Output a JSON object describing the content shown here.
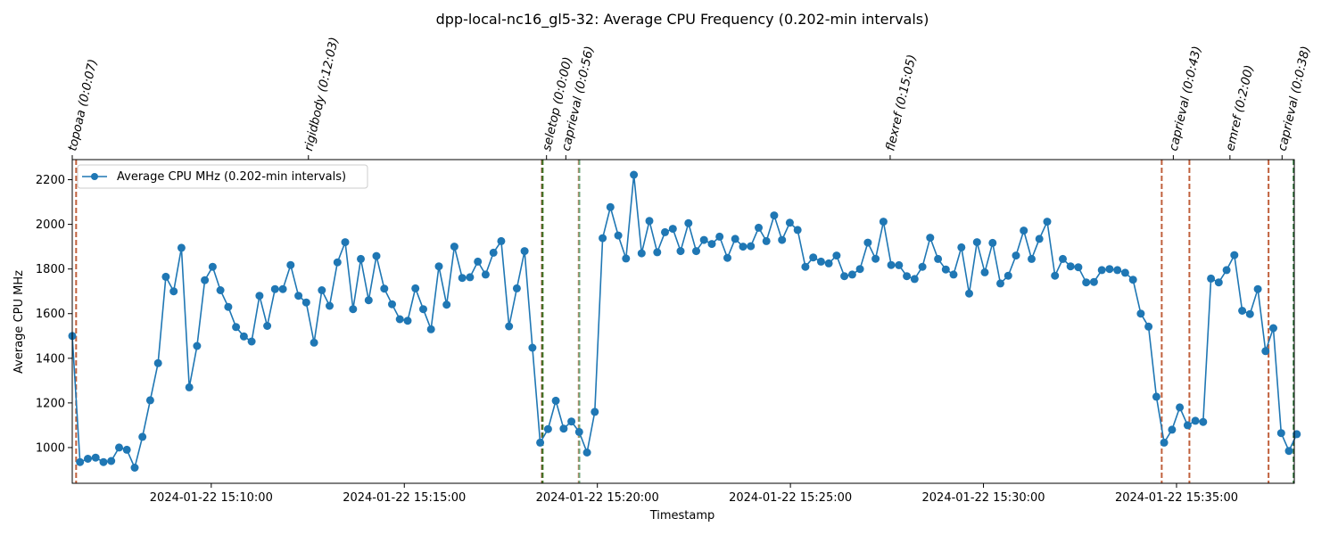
{
  "chart_data": {
    "type": "line",
    "title": "dpp-local-nc16_gl5-32: Average CPU Frequency (0.202-min intervals)",
    "xlabel": "Timestamp",
    "ylabel": "Average CPU MHz",
    "ylim": [
      840,
      2290
    ],
    "xlim": [
      "2024-01-22 15:06:24",
      "2024-01-22 15:38:03"
    ],
    "yticks": [
      1000,
      1200,
      1400,
      1600,
      1800,
      2000,
      2200
    ],
    "xticks": [
      {
        "t": "2024-01-22 15:10:00",
        "label": "2024-01-22 15:10:00"
      },
      {
        "t": "2024-01-22 15:15:00",
        "label": "2024-01-22 15:15:00"
      },
      {
        "t": "2024-01-22 15:20:00",
        "label": "2024-01-22 15:20:00"
      },
      {
        "t": "2024-01-22 15:25:00",
        "label": "2024-01-22 15:25:00"
      },
      {
        "t": "2024-01-22 15:30:00",
        "label": "2024-01-22 15:30:00"
      },
      {
        "t": "2024-01-22 15:35:00",
        "label": "2024-01-22 15:35:00"
      }
    ],
    "legend": {
      "position": "upper-left",
      "label": "Average CPU MHz (0.202-min intervals)"
    },
    "grid": false,
    "line_color": "#1f77b4",
    "series": [
      {
        "name": "Average CPU MHz (0.202-min intervals)",
        "start": "2024-01-22 15:06:24",
        "interval_seconds": 12.12,
        "values": [
          1500,
          935,
          950,
          955,
          935,
          940,
          1000,
          990,
          910,
          1048,
          1212,
          1378,
          1765,
          1700,
          1895,
          1270,
          1455,
          1750,
          1810,
          1705,
          1630,
          1540,
          1498,
          1475,
          1680,
          1545,
          1710,
          1710,
          1818,
          1680,
          1650,
          1470,
          1705,
          1635,
          1830,
          1920,
          1620,
          1845,
          1660,
          1858,
          1712,
          1642,
          1575,
          1568,
          1713,
          1620,
          1530,
          1812,
          1640,
          1900,
          1760,
          1763,
          1833,
          1775,
          1873,
          1925,
          1543,
          1713,
          1880,
          1447,
          1022,
          1083,
          1210,
          1085,
          1117,
          1070,
          978,
          1160,
          1938,
          2077,
          1950,
          1847,
          2222,
          1870,
          2015,
          1875,
          1965,
          1980,
          1880,
          2005,
          1880,
          1930,
          1912,
          1945,
          1850,
          1935,
          1900,
          1902,
          1985,
          1925,
          2040,
          1930,
          2007,
          1975,
          1810,
          1852,
          1833,
          1825,
          1860,
          1768,
          1775,
          1800,
          1918,
          1846,
          2012,
          1818,
          1817,
          1768,
          1755,
          1810,
          1940,
          1845,
          1798,
          1775,
          1897,
          1690,
          1920,
          1785,
          1917,
          1735,
          1770,
          1860,
          1972,
          1845,
          1935,
          2012,
          1770,
          1845,
          1812,
          1808,
          1740,
          1742,
          1795,
          1800,
          1795,
          1783,
          1752,
          1600,
          1542,
          1228,
          1022,
          1080,
          1180,
          1100,
          1120,
          1115,
          1757,
          1740,
          1795,
          1862,
          1613,
          1598,
          1710,
          1432,
          1535,
          1065,
          985,
          1060
        ]
      }
    ],
    "annotations": [
      {
        "label": "topoaa (0:0:07)",
        "t": "2024-01-22 15:06:24"
      },
      {
        "label": "rigidbody (0:12:03)",
        "t": "2024-01-22 15:12:31"
      },
      {
        "label": "seletop (0:0:00)",
        "t": "2024-01-22 15:18:41"
      },
      {
        "label": "caprieval (0:0:56)",
        "t": "2024-01-22 15:19:11"
      },
      {
        "label": "flexref (0:15:05)",
        "t": "2024-01-22 15:27:35"
      },
      {
        "label": "caprieval (0:0:43)",
        "t": "2024-01-22 15:34:55"
      },
      {
        "label": "emref (0:2:00)",
        "t": "2024-01-22 15:36:23"
      },
      {
        "label": "caprieval (0:0:38)",
        "t": "2024-01-22 15:37:44"
      }
    ],
    "vlines": [
      {
        "t": "2024-01-22 15:06:30",
        "color": "#c0603c",
        "style": "dashed"
      },
      {
        "t": "2024-01-22 15:18:34",
        "color": "#8b2a12",
        "style": "dashed"
      },
      {
        "t": "2024-01-22 15:18:35",
        "color": "#3e7a2a",
        "style": "dashed"
      },
      {
        "t": "2024-01-22 15:19:31",
        "color": "#e07a5f",
        "style": "dashed"
      },
      {
        "t": "2024-01-22 15:19:32",
        "color": "#6aa67a",
        "style": "dashed"
      },
      {
        "t": "2024-01-22 15:34:37",
        "color": "#c0603c",
        "style": "dashed"
      },
      {
        "t": "2024-01-22 15:35:20",
        "color": "#c0603c",
        "style": "dashed"
      },
      {
        "t": "2024-01-22 15:37:23",
        "color": "#c0603c",
        "style": "dashed"
      },
      {
        "t": "2024-01-22 15:38:02",
        "color": "#2e7a3a",
        "style": "dashed"
      }
    ]
  }
}
